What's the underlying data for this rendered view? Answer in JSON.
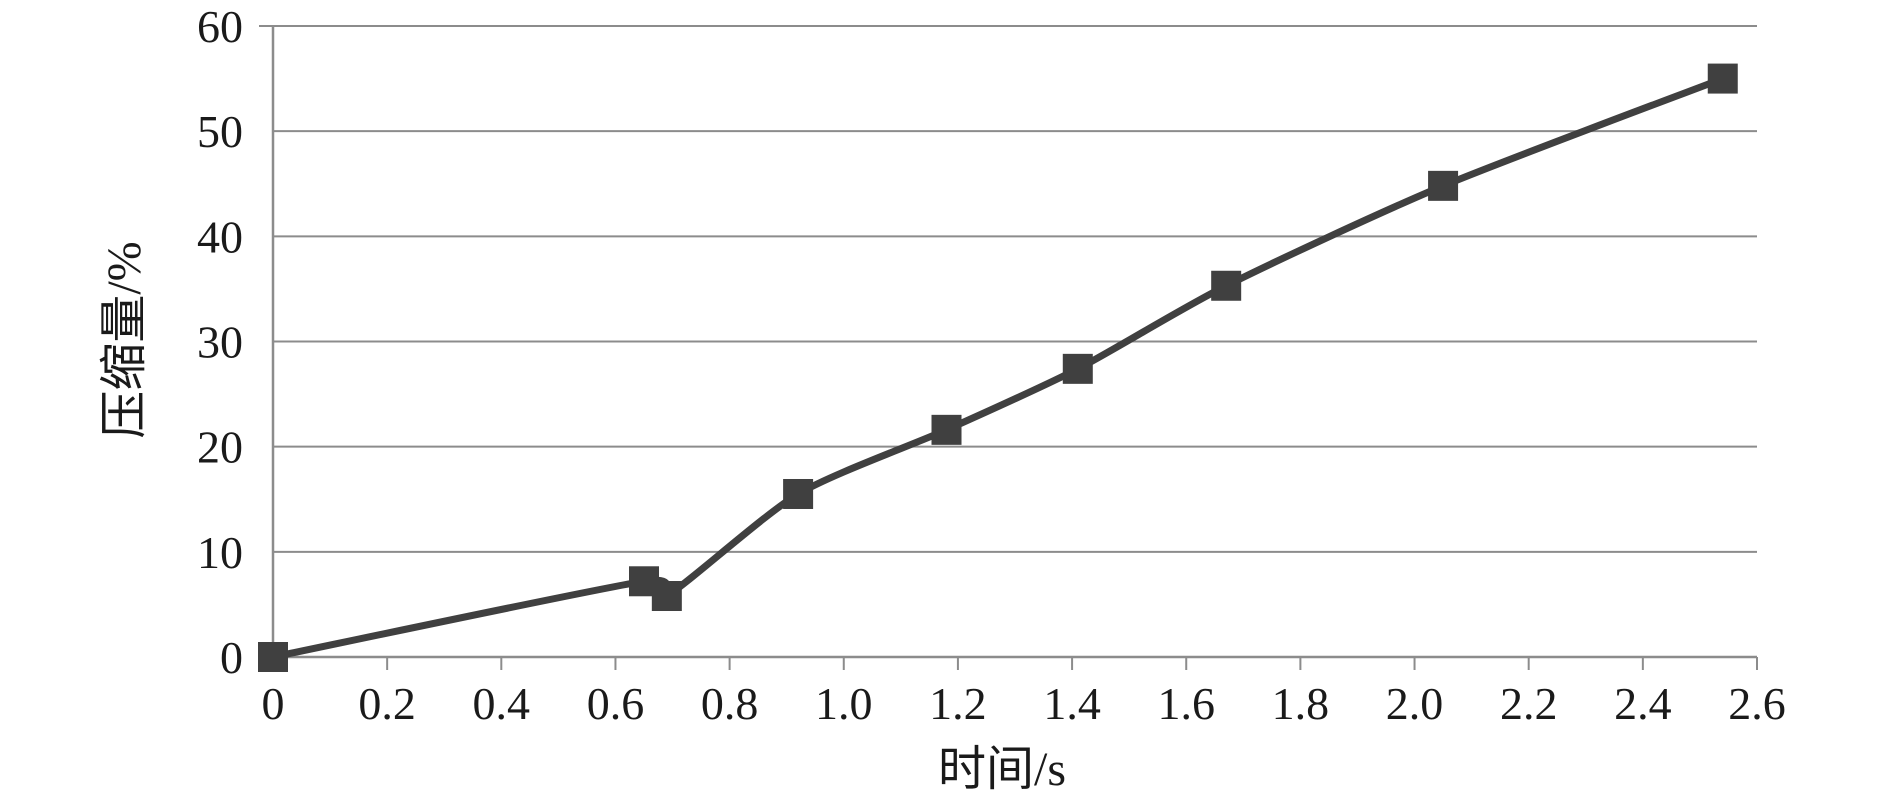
{
  "chart_data": {
    "type": "line",
    "title": "",
    "xlabel": "时间/s",
    "ylabel": "压缩量/%",
    "xlim": [
      0,
      2.6
    ],
    "ylim": [
      0,
      60
    ],
    "x_ticks": [
      0,
      0.2,
      0.4,
      0.6,
      0.8,
      1.0,
      1.2,
      1.4,
      1.6,
      1.8,
      2.0,
      2.2,
      2.4,
      2.6
    ],
    "x_tick_labels": [
      "0",
      "0.2",
      "0.4",
      "0.6",
      "0.8",
      "1.0",
      "1.2",
      "1.4",
      "1.6",
      "1.8",
      "2.0",
      "2.2",
      "2.4",
      "2.6"
    ],
    "y_ticks": [
      0,
      10,
      20,
      30,
      40,
      50,
      60
    ],
    "y_tick_labels": [
      "0",
      "10",
      "20",
      "30",
      "40",
      "50",
      "60"
    ],
    "grid": "horizontal",
    "legend": "none",
    "series": [
      {
        "marker": "square",
        "color": "#404040",
        "points": [
          {
            "x": 0,
            "y": 0
          },
          {
            "x": 0.65,
            "y": 7.2
          },
          {
            "x": 0.69,
            "y": 5.8
          },
          {
            "x": 0.92,
            "y": 15.5
          },
          {
            "x": 1.18,
            "y": 21.6
          },
          {
            "x": 1.41,
            "y": 27.4
          },
          {
            "x": 1.67,
            "y": 35.3
          },
          {
            "x": 2.05,
            "y": 44.8
          },
          {
            "x": 2.54,
            "y": 55.0
          }
        ]
      }
    ]
  }
}
